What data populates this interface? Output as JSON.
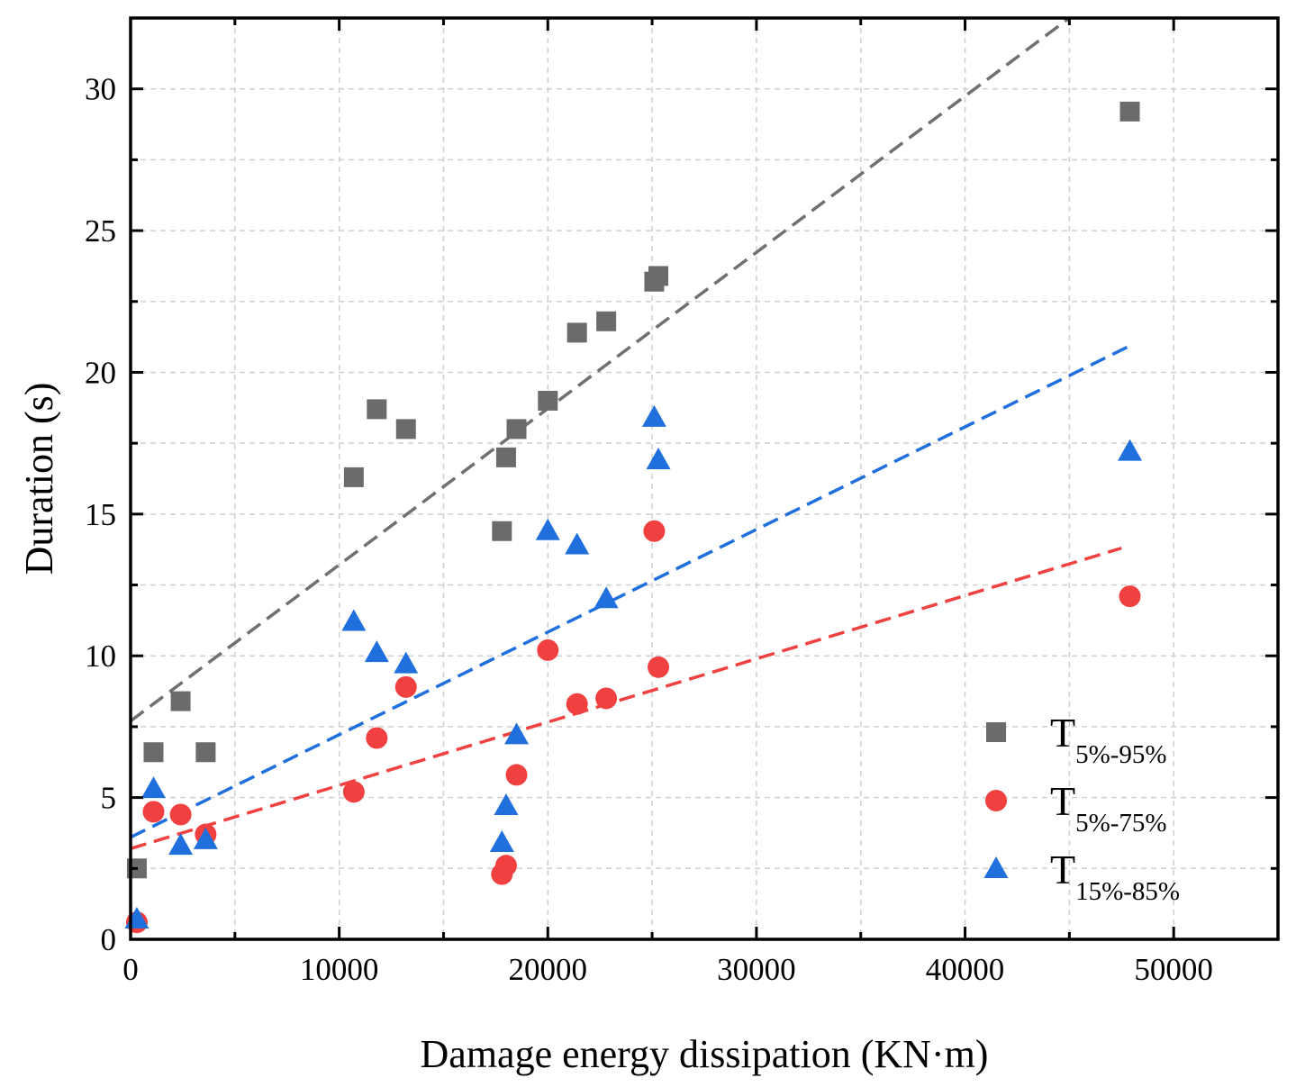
{
  "chart_data": {
    "type": "scatter",
    "title": "",
    "xlabel": "Damage energy dissipation (KN·m)",
    "ylabel": "Duration (s)",
    "xlim": [
      0,
      55000
    ],
    "ylim": [
      0,
      32.5
    ],
    "xticks": [
      0,
      10000,
      20000,
      30000,
      40000,
      50000
    ],
    "xtick_labels": [
      "0",
      "10000",
      "20000",
      "30000",
      "40000",
      "50000"
    ],
    "yticks": [
      0,
      5,
      10,
      15,
      20,
      25,
      30
    ],
    "ytick_labels": [
      "0",
      "5",
      "10",
      "15",
      "20",
      "25",
      "30"
    ],
    "grid": true,
    "legend_position": "bottom-right",
    "series": [
      {
        "name": "T5%-95%",
        "label_main": "T",
        "label_sub": "5%-95%",
        "marker": "square",
        "color": "#6b6b6b",
        "x": [
          300,
          1100,
          2400,
          3600,
          10700,
          11800,
          13200,
          17800,
          18000,
          18500,
          20000,
          21400,
          22800,
          25100,
          25300,
          47900
        ],
        "y": [
          2.5,
          6.6,
          8.4,
          6.6,
          16.3,
          18.7,
          18.0,
          14.4,
          17.0,
          18.0,
          19.0,
          21.4,
          21.8,
          23.2,
          23.4,
          29.2
        ],
        "trend": {
          "color": "#707070",
          "x": [
            0,
            45000
          ],
          "y": [
            7.7,
            32.5
          ]
        }
      },
      {
        "name": "T5%-75%",
        "label_main": "T",
        "label_sub": "5%-75%",
        "marker": "circle",
        "color": "#f04040",
        "x": [
          300,
          1100,
          2400,
          3600,
          10700,
          11800,
          13200,
          17800,
          18000,
          18500,
          20000,
          21400,
          22800,
          25100,
          25300,
          47900
        ],
        "y": [
          0.6,
          4.5,
          4.4,
          3.7,
          5.2,
          7.1,
          8.9,
          2.3,
          2.6,
          5.8,
          10.2,
          8.3,
          8.5,
          14.4,
          9.6,
          12.1
        ],
        "trend": {
          "color": "#f04040",
          "x": [
            0,
            47500
          ],
          "y": [
            3.2,
            13.8
          ]
        }
      },
      {
        "name": "T15%-85%",
        "label_main": "T",
        "label_sub": "15%-85%",
        "marker": "triangle",
        "color": "#1f6fdc",
        "x": [
          300,
          1100,
          2400,
          3600,
          10700,
          11800,
          13200,
          17800,
          18000,
          18500,
          20000,
          21400,
          22800,
          25100,
          25300,
          47900
        ],
        "y": [
          0.7,
          5.3,
          3.3,
          3.5,
          11.2,
          10.1,
          9.7,
          3.4,
          4.7,
          7.2,
          14.4,
          13.9,
          12.0,
          18.4,
          16.9,
          17.2
        ],
        "trend": {
          "color": "#1f6fdc",
          "x": [
            0,
            47800
          ],
          "y": [
            3.6,
            20.9
          ]
        }
      }
    ]
  }
}
